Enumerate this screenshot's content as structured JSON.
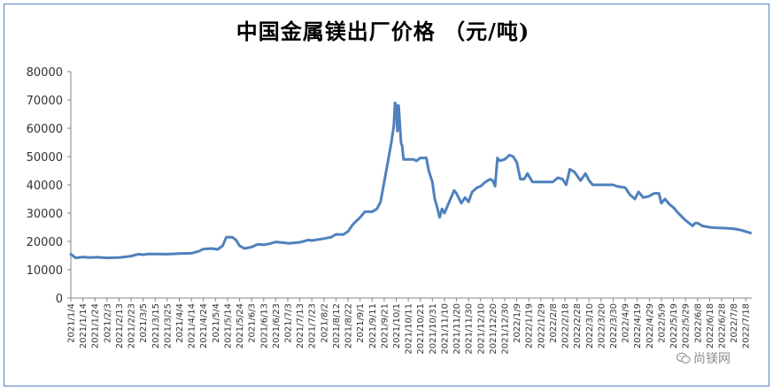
{
  "chart_data": {
    "type": "line",
    "title": "中国金属镁出厂价格 （元/吨)",
    "xlabel": "",
    "ylabel": "",
    "ylim": [
      0,
      80000
    ],
    "y_ticks": [
      0,
      10000,
      20000,
      30000,
      40000,
      50000,
      60000,
      70000,
      80000
    ],
    "grid": false,
    "x_tick_labels": [
      "2021/1/4",
      "2021/1/14",
      "2021/1/24",
      "2021/2/3",
      "2021/2/13",
      "2021/2/23",
      "2021/3/5",
      "2021/3/15",
      "2021/3/25",
      "2021/4/4",
      "2021/4/14",
      "2021/4/24",
      "2021/5/4",
      "2021/5/14",
      "2021/5/24",
      "2021/6/3",
      "2021/6/13",
      "2021/6/23",
      "2021/7/3",
      "2021/7/13",
      "2021/7/23",
      "2021/8/2",
      "2021/8/12",
      "2021/8/22",
      "2021/9/1",
      "2021/9/11",
      "2021/9/21",
      "2021/10/1",
      "2021/10/11",
      "2021/10/21",
      "2021/10/31",
      "2021/11/10",
      "2021/11/20",
      "2021/11/30",
      "2021/12/10",
      "2021/12/20",
      "2021/12/30",
      "2022/1/9",
      "2022/1/19",
      "2022/1/29",
      "2022/2/8",
      "2022/2/18",
      "2022/2/28",
      "2022/3/10",
      "2022/3/20",
      "2022/3/30",
      "2022/4/9",
      "2022/4/19",
      "2022/4/29",
      "2022/5/9",
      "2022/5/19",
      "2022/5/29",
      "2022/6/8",
      "2022/6/18",
      "2022/6/28",
      "2022/7/8",
      "2022/7/18"
    ],
    "series": [
      {
        "name": "",
        "color": "#4f81bd",
        "points": [
          [
            "2021/1/4",
            15500
          ],
          [
            "2021/1/8",
            14200
          ],
          [
            "2021/1/14",
            14500
          ],
          [
            "2021/1/20",
            14300
          ],
          [
            "2021/1/26",
            14400
          ],
          [
            "2021/2/3",
            14200
          ],
          [
            "2021/2/13",
            14300
          ],
          [
            "2021/2/23",
            14800
          ],
          [
            "2021/3/1",
            15500
          ],
          [
            "2021/3/5",
            15300
          ],
          [
            "2021/3/10",
            15600
          ],
          [
            "2021/3/25",
            15500
          ],
          [
            "2021/4/4",
            15700
          ],
          [
            "2021/4/14",
            15800
          ],
          [
            "2021/4/20",
            16500
          ],
          [
            "2021/4/24",
            17300
          ],
          [
            "2021/5/1",
            17500
          ],
          [
            "2021/5/6",
            17200
          ],
          [
            "2021/5/10",
            18500
          ],
          [
            "2021/5/13",
            21500
          ],
          [
            "2021/5/18",
            21500
          ],
          [
            "2021/5/21",
            20500
          ],
          [
            "2021/5/24",
            18500
          ],
          [
            "2021/5/28",
            17500
          ],
          [
            "2021/6/3",
            18000
          ],
          [
            "2021/6/8",
            19000
          ],
          [
            "2021/6/13",
            18800
          ],
          [
            "2021/6/18",
            19200
          ],
          [
            "2021/6/23",
            19800
          ],
          [
            "2021/7/1",
            19500
          ],
          [
            "2021/7/3",
            19300
          ],
          [
            "2021/7/13",
            19700
          ],
          [
            "2021/7/20",
            20500
          ],
          [
            "2021/7/23",
            20300
          ],
          [
            "2021/8/2",
            21000
          ],
          [
            "2021/8/8",
            21500
          ],
          [
            "2021/8/12",
            22500
          ],
          [
            "2021/8/18",
            22400
          ],
          [
            "2021/8/22",
            23500
          ],
          [
            "2021/8/26",
            26000
          ],
          [
            "2021/9/1",
            28500
          ],
          [
            "2021/9/5",
            30500
          ],
          [
            "2021/9/11",
            30500
          ],
          [
            "2021/9/15",
            31500
          ],
          [
            "2021/9/18",
            34000
          ],
          [
            "2021/9/21",
            41000
          ],
          [
            "2021/9/24",
            48000
          ],
          [
            "2021/9/27",
            55000
          ],
          [
            "2021/9/29",
            61000
          ],
          [
            "2021/9/30",
            69000
          ],
          [
            "2021/10/1",
            68000
          ],
          [
            "2021/10/2",
            59000
          ],
          [
            "2021/10/3",
            68000
          ],
          [
            "2021/10/5",
            55000
          ],
          [
            "2021/10/6",
            53500
          ],
          [
            "2021/10/7",
            49000
          ],
          [
            "2021/10/11",
            49000
          ],
          [
            "2021/10/15",
            49000
          ],
          [
            "2021/10/18",
            48500
          ],
          [
            "2021/10/21",
            49500
          ],
          [
            "2021/10/26",
            49500
          ],
          [
            "2021/10/28",
            45000
          ],
          [
            "2021/10/31",
            41000
          ],
          [
            "2021/11/2",
            35000
          ],
          [
            "2021/11/4",
            32000
          ],
          [
            "2021/11/6",
            28500
          ],
          [
            "2021/11/8",
            31500
          ],
          [
            "2021/11/10",
            30000
          ],
          [
            "2021/11/14",
            34000
          ],
          [
            "2021/11/18",
            38000
          ],
          [
            "2021/11/20",
            37000
          ],
          [
            "2021/11/24",
            33500
          ],
          [
            "2021/11/27",
            35500
          ],
          [
            "2021/11/30",
            34000
          ],
          [
            "2021/12/3",
            37500
          ],
          [
            "2021/12/7",
            39000
          ],
          [
            "2021/12/10",
            39500
          ],
          [
            "2021/12/14",
            41000
          ],
          [
            "2021/12/18",
            42000
          ],
          [
            "2021/12/20",
            41500
          ],
          [
            "2021/12/22",
            39500
          ],
          [
            "2021/12/24",
            49500
          ],
          [
            "2021/12/26",
            48500
          ],
          [
            "2021/12/30",
            49000
          ],
          [
            "2022/1/3",
            50500
          ],
          [
            "2022/1/6",
            50000
          ],
          [
            "2022/1/9",
            48000
          ],
          [
            "2022/1/12",
            42000
          ],
          [
            "2022/1/15",
            42000
          ],
          [
            "2022/1/18",
            44000
          ],
          [
            "2022/1/22",
            41000
          ],
          [
            "2022/1/29",
            41000
          ],
          [
            "2022/2/8",
            41000
          ],
          [
            "2022/2/12",
            42500
          ],
          [
            "2022/2/16",
            42000
          ],
          [
            "2022/2/19",
            40000
          ],
          [
            "2022/2/22",
            45500
          ],
          [
            "2022/2/26",
            44500
          ],
          [
            "2022/3/3",
            41500
          ],
          [
            "2022/3/7",
            44000
          ],
          [
            "2022/3/10",
            41500
          ],
          [
            "2022/3/13",
            40000
          ],
          [
            "2022/3/20",
            40000
          ],
          [
            "2022/3/30",
            40000
          ],
          [
            "2022/4/2",
            39500
          ],
          [
            "2022/4/9",
            39000
          ],
          [
            "2022/4/13",
            36500
          ],
          [
            "2022/4/17",
            35000
          ],
          [
            "2022/4/20",
            37500
          ],
          [
            "2022/4/24",
            35500
          ],
          [
            "2022/4/29",
            36000
          ],
          [
            "2022/5/3",
            37000
          ],
          [
            "2022/5/7",
            37000
          ],
          [
            "2022/5/9",
            33500
          ],
          [
            "2022/5/12",
            35000
          ],
          [
            "2022/5/16",
            33000
          ],
          [
            "2022/5/19",
            32000
          ],
          [
            "2022/5/23",
            30000
          ],
          [
            "2022/5/29",
            27500
          ],
          [
            "2022/6/4",
            25500
          ],
          [
            "2022/6/6",
            26500
          ],
          [
            "2022/6/8",
            26500
          ],
          [
            "2022/6/12",
            25500
          ],
          [
            "2022/6/18",
            25000
          ],
          [
            "2022/6/24",
            24800
          ],
          [
            "2022/7/1",
            24700
          ],
          [
            "2022/7/8",
            24500
          ],
          [
            "2022/7/14",
            24000
          ],
          [
            "2022/7/18",
            23500
          ],
          [
            "2022/7/22",
            23000
          ]
        ]
      }
    ]
  },
  "watermark": {
    "text": "尚镁网",
    "icon": "wechat-icon"
  }
}
